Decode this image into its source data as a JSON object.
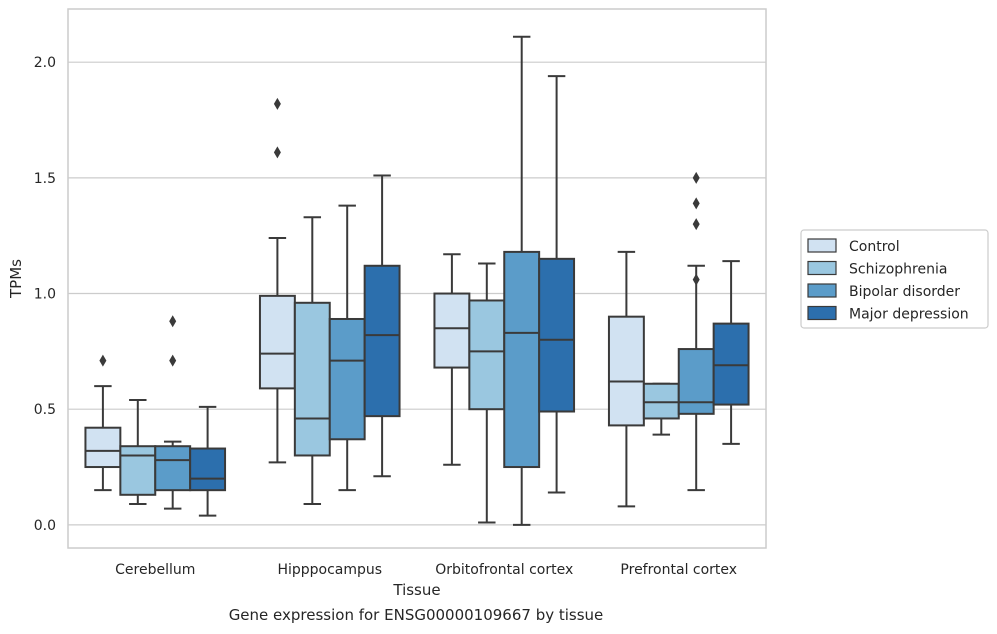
{
  "chart_data": {
    "type": "box",
    "caption": "Gene expression for ENSG00000109667 by tissue",
    "xlabel": "Tissue",
    "ylabel": "TPMs",
    "ylim": [
      -0.1,
      2.23
    ],
    "yticks": [
      "0.0",
      "0.5",
      "1.0",
      "1.5",
      "2.0"
    ],
    "grid": "horizontal",
    "legend_placement": "right, outside plot",
    "categories": [
      "Cerebellum",
      "Hipppocampus",
      "Orbitofrontal cortex",
      "Prefrontal cortex"
    ],
    "series": [
      {
        "name": "Control",
        "color": "#d1e2f2",
        "boxes": [
          {
            "whislo": 0.15,
            "q1": 0.25,
            "med": 0.32,
            "q3": 0.42,
            "whishi": 0.6,
            "fliers": [
              0.71
            ]
          },
          {
            "whislo": 0.27,
            "q1": 0.59,
            "med": 0.74,
            "q3": 0.99,
            "whishi": 1.24,
            "fliers": [
              1.61,
              1.82
            ]
          },
          {
            "whislo": 0.26,
            "q1": 0.68,
            "med": 0.85,
            "q3": 1.0,
            "whishi": 1.17,
            "fliers": []
          },
          {
            "whislo": 0.08,
            "q1": 0.43,
            "med": 0.62,
            "q3": 0.9,
            "whishi": 1.18,
            "fliers": []
          }
        ]
      },
      {
        "name": "Schizophrenia",
        "color": "#9ac7e0",
        "boxes": [
          {
            "whislo": 0.09,
            "q1": 0.13,
            "med": 0.3,
            "q3": 0.34,
            "whishi": 0.54,
            "fliers": []
          },
          {
            "whislo": 0.09,
            "q1": 0.3,
            "med": 0.46,
            "q3": 0.96,
            "whishi": 1.33,
            "fliers": []
          },
          {
            "whislo": 0.01,
            "q1": 0.5,
            "med": 0.75,
            "q3": 0.97,
            "whishi": 1.13,
            "fliers": []
          },
          {
            "whislo": 0.39,
            "q1": 0.46,
            "med": 0.53,
            "q3": 0.61,
            "whishi": 0.61,
            "fliers": []
          }
        ]
      },
      {
        "name": "Bipolar disorder",
        "color": "#5b9cc9",
        "boxes": [
          {
            "whislo": 0.07,
            "q1": 0.15,
            "med": 0.28,
            "q3": 0.34,
            "whishi": 0.36,
            "fliers": [
              0.71,
              0.88
            ]
          },
          {
            "whislo": 0.15,
            "q1": 0.37,
            "med": 0.71,
            "q3": 0.89,
            "whishi": 1.38,
            "fliers": []
          },
          {
            "whislo": 0.0,
            "q1": 0.25,
            "med": 0.83,
            "q3": 1.18,
            "whishi": 2.11,
            "fliers": []
          },
          {
            "whislo": 0.15,
            "q1": 0.48,
            "med": 0.53,
            "q3": 0.76,
            "whishi": 1.12,
            "fliers": [
              1.06,
              1.3,
              1.39,
              1.5
            ]
          }
        ]
      },
      {
        "name": "Major depression",
        "color": "#2c6fad",
        "boxes": [
          {
            "whislo": 0.04,
            "q1": 0.15,
            "med": 0.2,
            "q3": 0.33,
            "whishi": 0.51,
            "fliers": []
          },
          {
            "whislo": 0.21,
            "q1": 0.47,
            "med": 0.82,
            "q3": 1.12,
            "whishi": 1.51,
            "fliers": []
          },
          {
            "whislo": 0.14,
            "q1": 0.49,
            "med": 0.8,
            "q3": 1.15,
            "whishi": 1.94,
            "fliers": []
          },
          {
            "whislo": 0.35,
            "q1": 0.52,
            "med": 0.69,
            "q3": 0.87,
            "whishi": 1.14,
            "fliers": []
          }
        ]
      }
    ]
  }
}
